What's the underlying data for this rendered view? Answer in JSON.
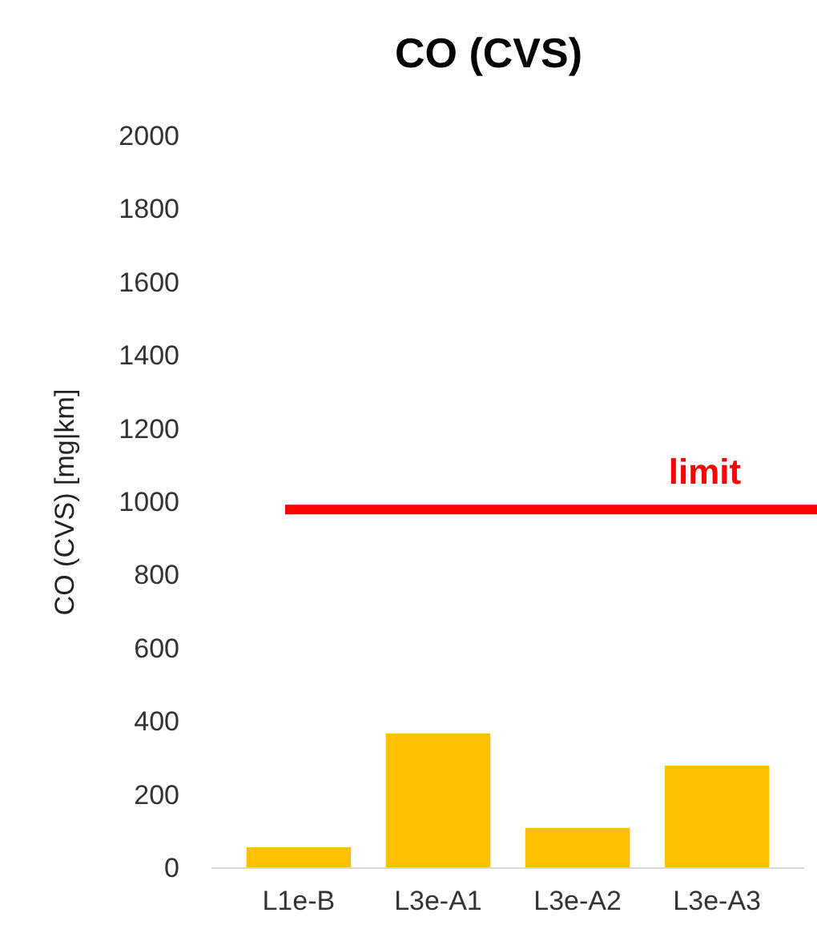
{
  "chart_data": {
    "type": "bar",
    "title": "CO (CVS)",
    "ylabel": "CO (CVS) [mg|km]",
    "categories": [
      "L1e-B",
      "L3e-A1",
      "L3e-A2",
      "L3e-A3"
    ],
    "values": [
      57,
      368,
      110,
      280
    ],
    "color": "#ffc000",
    "ylim": [
      0,
      2000
    ],
    "yticks": [
      0,
      200,
      400,
      600,
      800,
      1000,
      1200,
      1400,
      1600,
      1800,
      2000
    ],
    "grid": false,
    "ref_lines": [
      {
        "axis": "y",
        "value": 980,
        "label": "limit",
        "color": "#ff0000"
      }
    ]
  }
}
